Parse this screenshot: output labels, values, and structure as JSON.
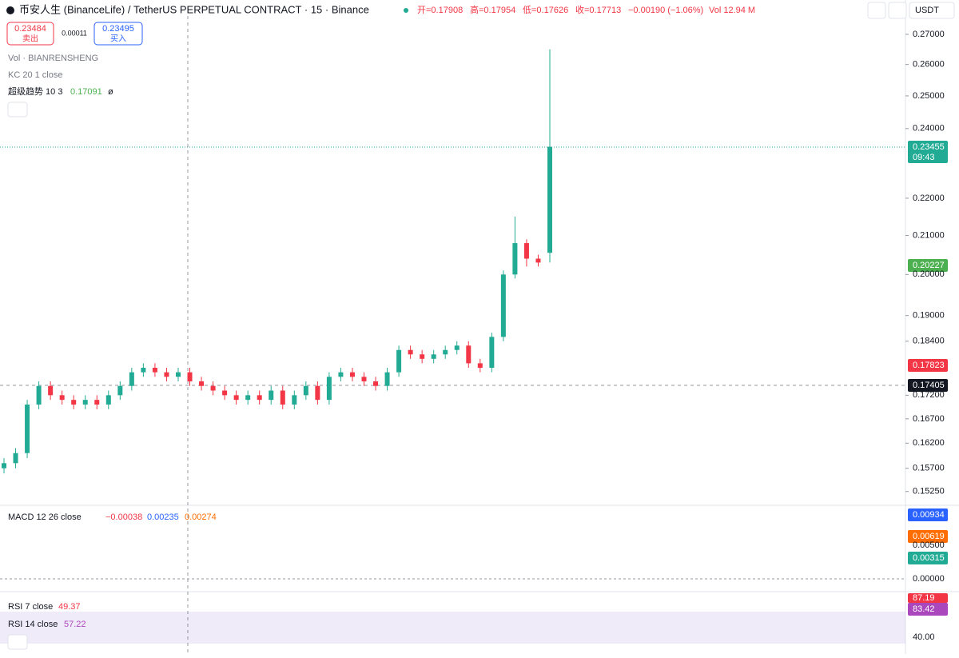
{
  "header": {
    "title": "币安人生 (BinanceLife) / TetherUS PERPETUAL CONTRACT · 15 · Binance",
    "open": "开=0.17908",
    "high": "高=0.17954",
    "low": "低=0.17626",
    "close": "收=0.17713",
    "change": "−0.00190 (−1.06%)",
    "volume": "Vol 12.94 M",
    "currency": "USDT"
  },
  "trade": {
    "sell_price": "0.23484",
    "sell": "卖出",
    "spread": "0.00011",
    "buy_price": "0.23495",
    "buy": "买入"
  },
  "indicators": {
    "vol": "Vol · BIANRENSHENG",
    "kc": "KC 20 1 close",
    "supertrend": "超级趋势 10 3",
    "supertrend_value": "0.17091",
    "supertrend_extra": "ø"
  },
  "price_labels": {
    "last": "0.23455",
    "countdown": "09:43",
    "supertrend": "0.20227",
    "red": "0.17823",
    "cursor": "0.17405"
  },
  "macd": {
    "label": "MACD 12 26 close",
    "hist": "−0.00038",
    "macd": "0.00235",
    "signal": "0.00274",
    "axis": [
      "0.00934",
      "0.00619",
      "0.00500",
      "0.00315",
      "0.00000"
    ]
  },
  "rsi": {
    "label7": "RSI 7 close",
    "value7": "49.37",
    "label14": "RSI 14 close",
    "value14": "57.22",
    "axis": [
      "87.19",
      "83.42",
      "40.00"
    ]
  },
  "chart_data": {
    "type": "candlestick",
    "log_scale": true,
    "up_color": "#22ab94",
    "down_color": "#f23645",
    "ylim": [
      0.1505,
      0.2735
    ],
    "yticks": [
      {
        "value": 0.27,
        "label": "0.27000"
      },
      {
        "value": 0.26,
        "label": "0.26000"
      },
      {
        "value": 0.25,
        "label": "0.25000"
      },
      {
        "value": 0.24,
        "label": "0.24000"
      },
      {
        "value": 0.22,
        "label": "0.22000"
      },
      {
        "value": 0.21,
        "label": "0.21000"
      },
      {
        "value": 0.2,
        "label": "0.20000"
      },
      {
        "value": 0.19,
        "label": "0.19000"
      },
      {
        "value": 0.184,
        "label": "0.18400"
      },
      {
        "value": 0.172,
        "label": "0.17200"
      },
      {
        "value": 0.167,
        "label": "0.16700"
      },
      {
        "value": 0.162,
        "label": "0.16200"
      },
      {
        "value": 0.157,
        "label": "0.15700"
      },
      {
        "value": 0.1525,
        "label": "0.15250"
      }
    ],
    "open": [
      0.157,
      0.158,
      0.16,
      0.17,
      0.174,
      0.172,
      0.171,
      0.17,
      0.171,
      0.17,
      0.172,
      0.174,
      0.177,
      0.178,
      0.177,
      0.176,
      0.177,
      0.175,
      0.174,
      0.173,
      0.172,
      0.171,
      0.172,
      0.171,
      0.173,
      0.17,
      0.172,
      0.174,
      0.171,
      0.176,
      0.177,
      0.176,
      0.175,
      0.174,
      0.177,
      0.182,
      0.181,
      0.18,
      0.181,
      0.182,
      0.183,
      0.179,
      0.178,
      0.185,
      0.2,
      0.208,
      0.204,
      0.2055
    ],
    "high": [
      0.159,
      0.161,
      0.171,
      0.175,
      0.175,
      0.173,
      0.172,
      0.172,
      0.172,
      0.173,
      0.175,
      0.178,
      0.179,
      0.179,
      0.178,
      0.178,
      0.178,
      0.176,
      0.175,
      0.174,
      0.173,
      0.173,
      0.173,
      0.174,
      0.174,
      0.173,
      0.175,
      0.175,
      0.177,
      0.178,
      0.178,
      0.177,
      0.176,
      0.178,
      0.183,
      0.183,
      0.182,
      0.182,
      0.183,
      0.184,
      0.184,
      0.18,
      0.186,
      0.201,
      0.215,
      0.209,
      0.205,
      0.265
    ],
    "low": [
      0.156,
      0.157,
      0.159,
      0.169,
      0.171,
      0.17,
      0.169,
      0.169,
      0.169,
      0.169,
      0.171,
      0.173,
      0.176,
      0.176,
      0.175,
      0.175,
      0.174,
      0.173,
      0.172,
      0.171,
      0.17,
      0.17,
      0.17,
      0.17,
      0.169,
      0.169,
      0.171,
      0.17,
      0.17,
      0.175,
      0.175,
      0.174,
      0.173,
      0.173,
      0.176,
      0.18,
      0.179,
      0.179,
      0.18,
      0.181,
      0.178,
      0.177,
      0.177,
      0.184,
      0.199,
      0.202,
      0.202,
      0.203
    ],
    "close": [
      0.158,
      0.16,
      0.17,
      0.174,
      0.172,
      0.171,
      0.17,
      0.171,
      0.17,
      0.172,
      0.174,
      0.177,
      0.178,
      0.177,
      0.176,
      0.177,
      0.175,
      0.174,
      0.173,
      0.172,
      0.171,
      0.172,
      0.171,
      0.173,
      0.17,
      0.172,
      0.174,
      0.171,
      0.176,
      0.177,
      0.176,
      0.175,
      0.174,
      0.177,
      0.182,
      0.181,
      0.18,
      0.181,
      0.182,
      0.183,
      0.179,
      0.178,
      0.185,
      0.2,
      0.208,
      0.204,
      0.203,
      0.2346
    ]
  }
}
